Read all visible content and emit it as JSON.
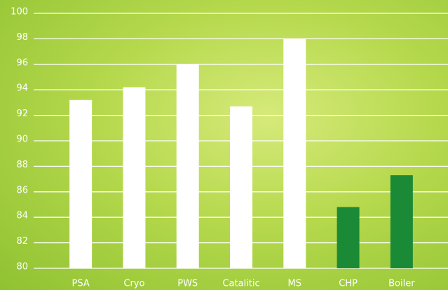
{
  "chart_data": {
    "type": "bar",
    "categories": [
      "PSA",
      "Cryo",
      "PWS",
      "Catalitic",
      "MS",
      "CHP",
      "Boiler"
    ],
    "values": [
      93.2,
      94.2,
      96,
      92.7,
      98,
      84.8,
      87.3
    ],
    "colors": [
      "#ffffff",
      "#ffffff",
      "#ffffff",
      "#ffffff",
      "#ffffff",
      "#1a8a36",
      "#1a8a36"
    ],
    "ylim": [
      80,
      100
    ],
    "yticks": [
      80,
      82,
      84,
      86,
      88,
      90,
      92,
      94,
      96,
      98,
      100
    ],
    "grid": true
  }
}
